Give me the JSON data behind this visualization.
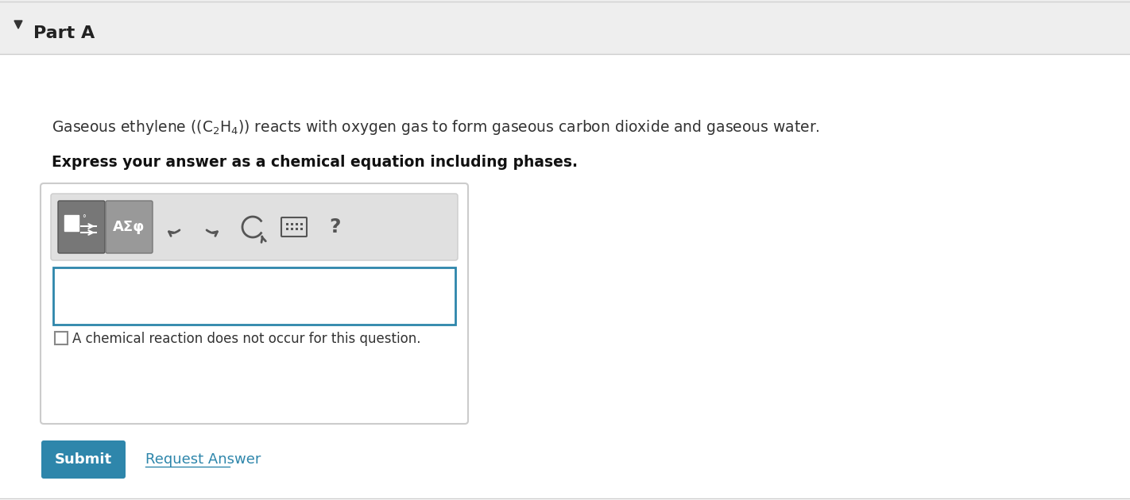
{
  "bg_color": "#f5f5f5",
  "white_bg": "#ffffff",
  "header_bg": "#eeeeee",
  "header_text": "Part A",
  "header_text_color": "#222222",
  "arrow_color": "#333333",
  "body_text_color": "#333333",
  "bold_text_color": "#111111",
  "body_text_line2": "Express your answer as a chemical equation including phases.",
  "toolbar_bg": "#e0e0e0",
  "toolbar_btn2_text": "AΣφ",
  "input_box_border": "#2e86ab",
  "input_box_bg": "#ffffff",
  "checkbox_color": "#888888",
  "checkbox_text": "A chemical reaction does not occur for this question.",
  "submit_btn_bg": "#2e86ab",
  "submit_btn_text": "Submit",
  "submit_btn_text_color": "#ffffff",
  "request_link_text": "Request Answer",
  "request_link_color": "#2e86ab",
  "outer_box_border": "#cccccc",
  "separator_color": "#cccccc",
  "top_separator": "#d0d0d0",
  "icon_color": "#555555"
}
